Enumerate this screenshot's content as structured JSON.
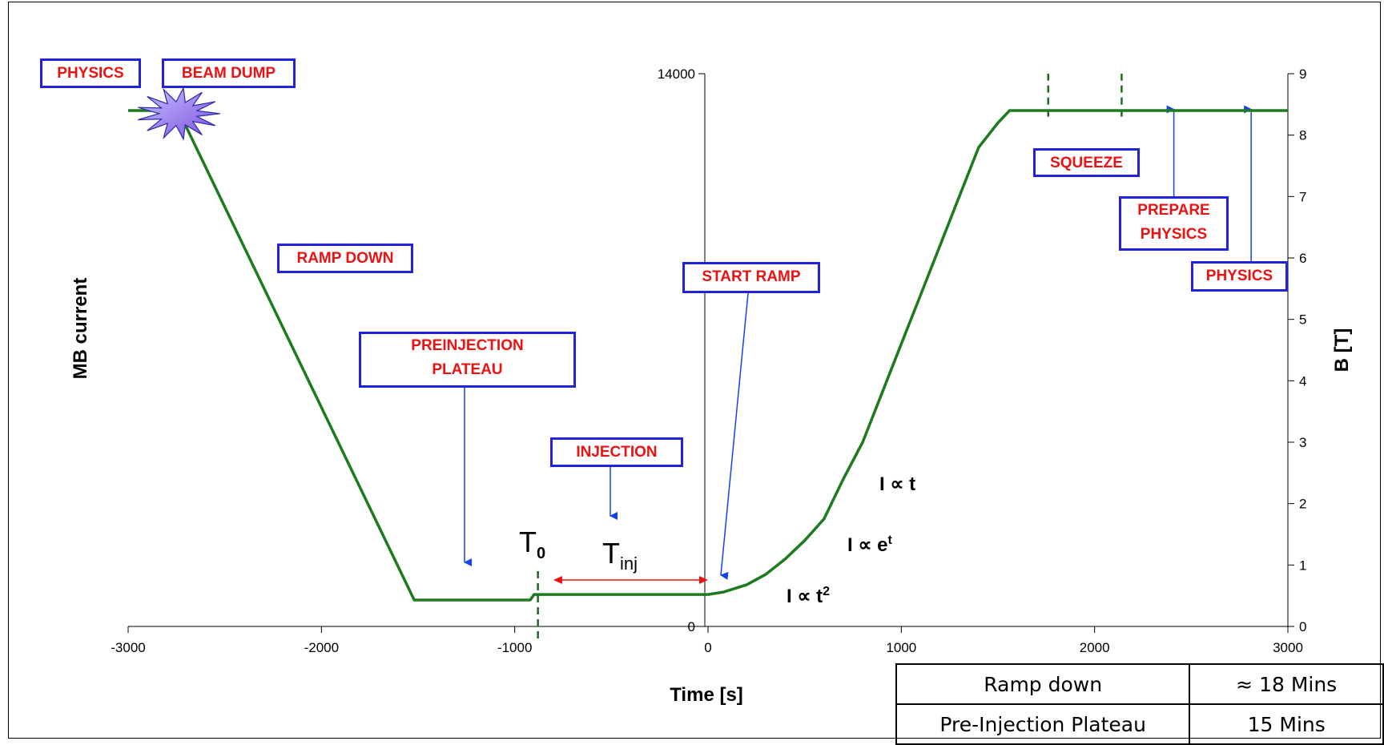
{
  "chart_data": {
    "type": "line",
    "xlabel": "Time [s]",
    "ylabel_left": "MB current",
    "ylabel_right": "B [T]",
    "x_ticks": [
      -3000,
      -2000,
      -1000,
      0,
      1000,
      2000,
      3000
    ],
    "xlim": [
      -3000,
      3000
    ],
    "left_ticks": [
      "0",
      "14000"
    ],
    "ylim_left": [
      0,
      14000
    ],
    "right_ticks": [
      0,
      1,
      2,
      3,
      4,
      5,
      6,
      7,
      8,
      9
    ],
    "ylim_right": [
      0,
      9
    ],
    "series": [
      {
        "color": "#1e7a1e",
        "x": [
          -3000,
          -2740,
          -1520,
          -920,
          -900,
          0,
          80,
          200,
          300,
          400,
          500,
          600,
          700,
          800,
          900,
          1000,
          1100,
          1200,
          1300,
          1400,
          1500,
          1560,
          1600,
          3000
        ],
        "y": [
          8.4,
          8.4,
          0.43,
          0.43,
          0.52,
          0.52,
          0.56,
          0.68,
          0.85,
          1.1,
          1.4,
          1.75,
          2.4,
          3.0,
          3.8,
          4.6,
          5.4,
          6.2,
          7.0,
          7.8,
          8.2,
          8.4,
          8.4,
          8.4
        ]
      }
    ],
    "annotations": {
      "physics_start": "PHYSICS",
      "beam_dump": "BEAM DUMP",
      "ramp_down": "RAMP DOWN",
      "preinjection_line1": "PREINJECTION",
      "preinjection_line2": "PLATEAU",
      "injection": "INJECTION",
      "start_ramp": "START RAMP",
      "squeeze": "SQUEEZE",
      "prepare_line1": "PREPARE",
      "prepare_line2": "PHYSICS",
      "physics_end": "PHYSICS",
      "t0_main": "T",
      "t0_sub": "0",
      "tinj_main": "T",
      "tinj_sub": "inj",
      "f_linear": "I ∝ t",
      "f_exp_main": "I ∝ e",
      "f_exp_sup": "t",
      "f_quad_main": "I ∝ t",
      "f_quad_sup": "2"
    },
    "colors": {
      "box_border": "#2222dd",
      "box_text": "#ee1111",
      "arrow": "#1144ee",
      "tinj_arrow": "#ee1111",
      "marker": "#1e6a1e"
    }
  },
  "table": {
    "rows": [
      {
        "phase": "Ramp down",
        "duration": "≈ 18 Mins"
      },
      {
        "phase": "Pre-Injection Plateau",
        "duration": "15 Mins"
      }
    ]
  }
}
